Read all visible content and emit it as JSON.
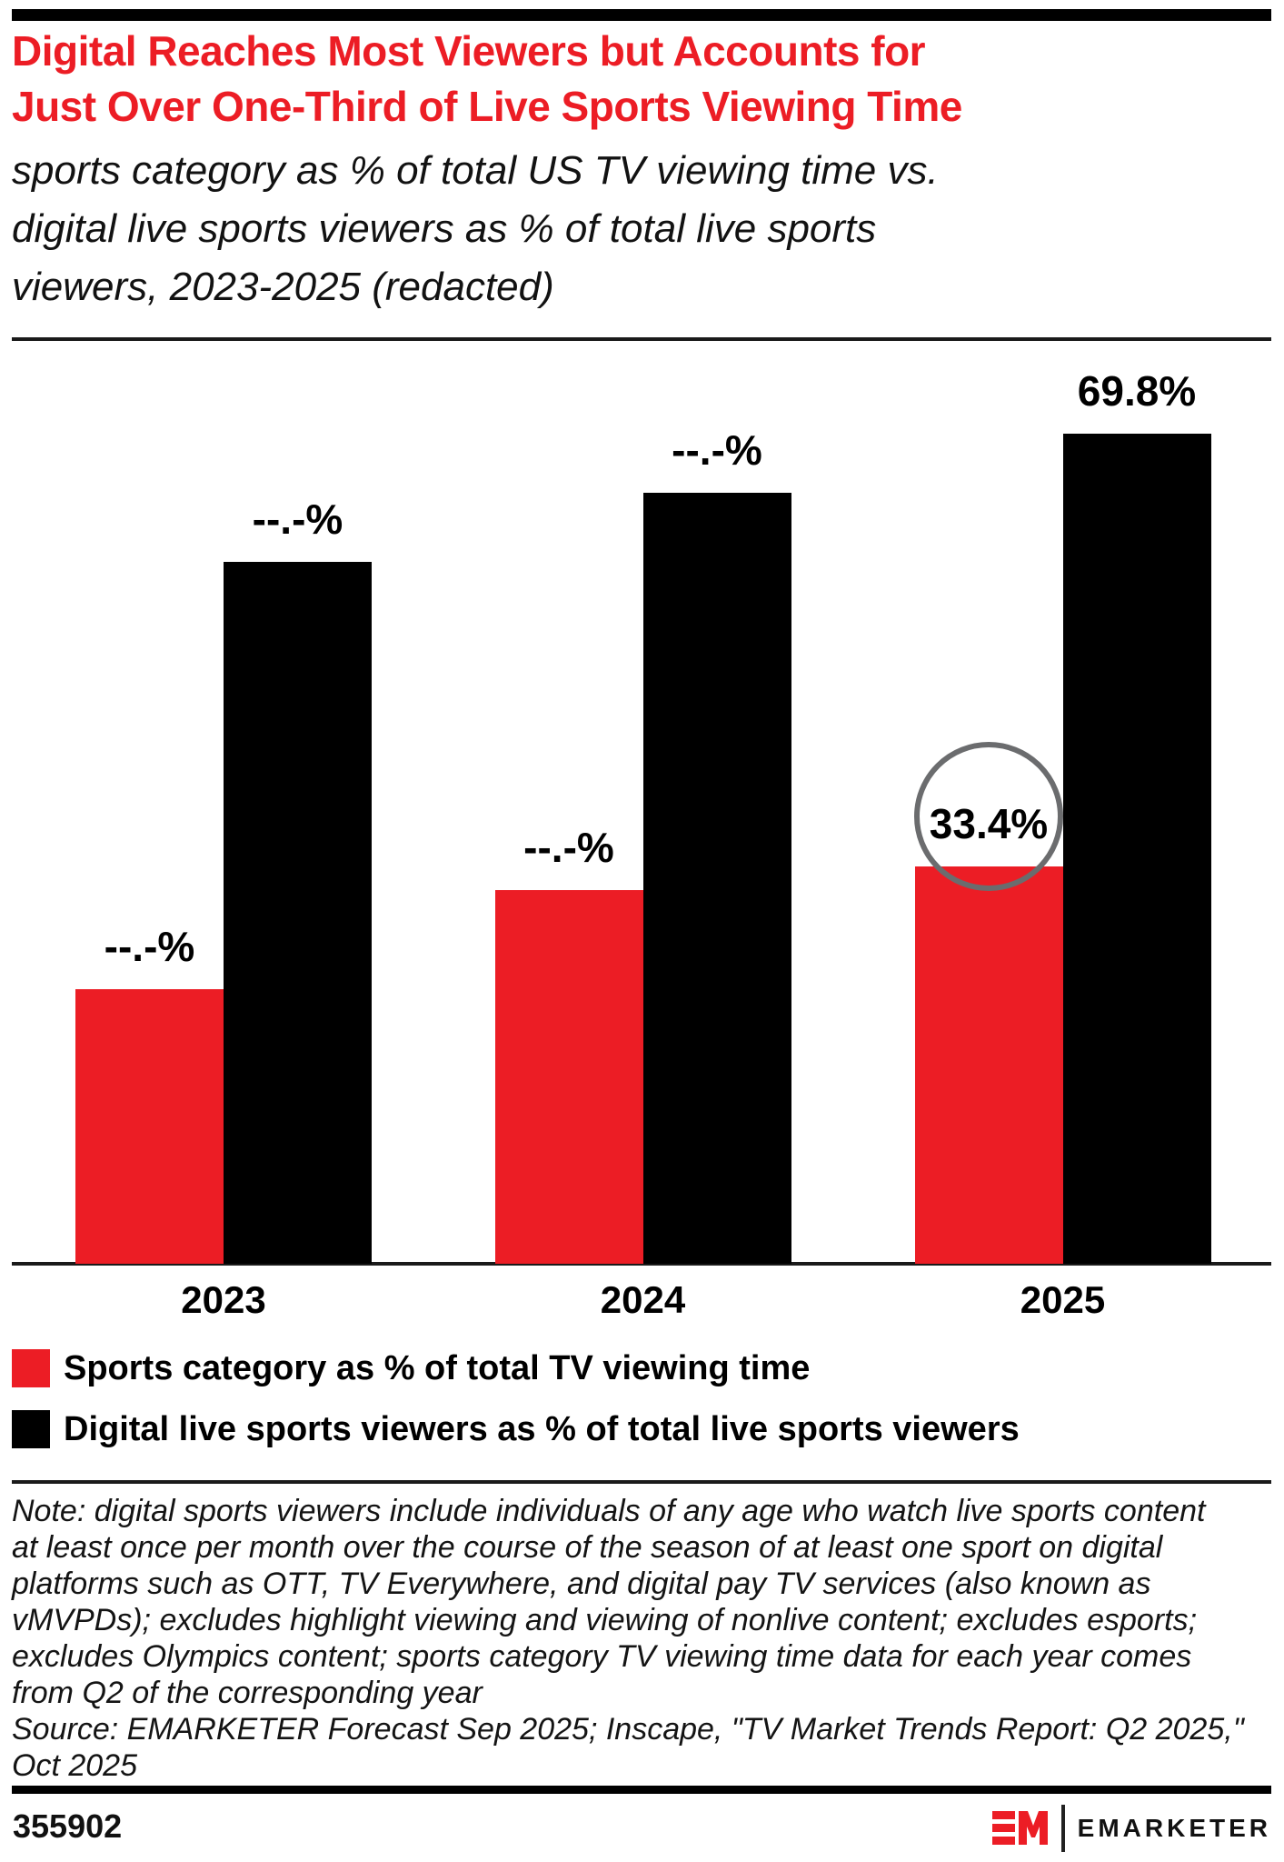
{
  "header": {
    "title_lines": [
      "Digital Reaches Most Viewers but Accounts for",
      "Just Over One-Third of Live Sports Viewing Time"
    ],
    "subtitle_lines": [
      "sports category as % of total US TV viewing time vs.",
      "digital live sports viewers as % of total live sports",
      "viewers, 2023-2025 (redacted)"
    ]
  },
  "chart_data": {
    "type": "bar",
    "title": "Digital Reaches Most Viewers but Accounts for Just Over One-Third of Live Sports Viewing Time",
    "subtitle": "sports category as % of total US TV viewing time vs. digital live sports viewers as % of total live sports viewers, 2023-2025 (redacted)",
    "categories": [
      "2023",
      "2024",
      "2025"
    ],
    "series": [
      {
        "name": "Sports category as % of total TV viewing time",
        "color": "#EC1D25",
        "values": [
          23.1,
          31.4,
          33.4
        ],
        "labels": [
          "--.-%",
          "--.-%",
          "33.4%"
        ]
      },
      {
        "name": "Digital live sports viewers as % of total live sports viewers",
        "color": "#000000",
        "values": [
          59.0,
          64.8,
          69.8
        ],
        "labels": [
          "--.-%",
          "--.-%",
          "69.8%"
        ]
      }
    ],
    "redacted_values_estimated_from_bar_heights": true,
    "ylim": [
      0,
      77.5
    ],
    "grid": false,
    "y_axis_shown": false,
    "legend_position": "bottom",
    "annotation": {
      "shape": "circle",
      "category": "2025",
      "series_index": 0,
      "highlighted_label": "33.4%",
      "color": "#6B6C6E"
    }
  },
  "legend": {
    "items": [
      {
        "label": "Sports category as % of total TV viewing time",
        "color": "#EC1D25"
      },
      {
        "label": "Digital live sports viewers as % of total live sports viewers",
        "color": "#000000"
      }
    ]
  },
  "note_lines": [
    "Note: digital sports viewers include individuals of any age who watch live sports content",
    "at least once per month over the course of the season of at least one sport on digital",
    "platforms such as OTT, TV Everywhere, and digital pay TV services (also known as",
    "vMVPDs); excludes highlight viewing and viewing of nonlive content; excludes esports;",
    "excludes Olympics content; sports category TV viewing time data for each year comes",
    "from Q2 of the corresponding year"
  ],
  "source_lines": [
    "Source: EMARKETER Forecast Sep 2025; Inscape, \"TV Market Trends Report: Q2 2025,\"",
    "Oct 2025"
  ],
  "footer": {
    "chart_id": "355902",
    "logo_mark": "EM",
    "logo_text": "EMARKETER"
  },
  "colors": {
    "accent_red": "#EC1D25",
    "bar_black": "#000000",
    "circle_gray": "#6B6C6E",
    "rule_black": "#000000"
  }
}
